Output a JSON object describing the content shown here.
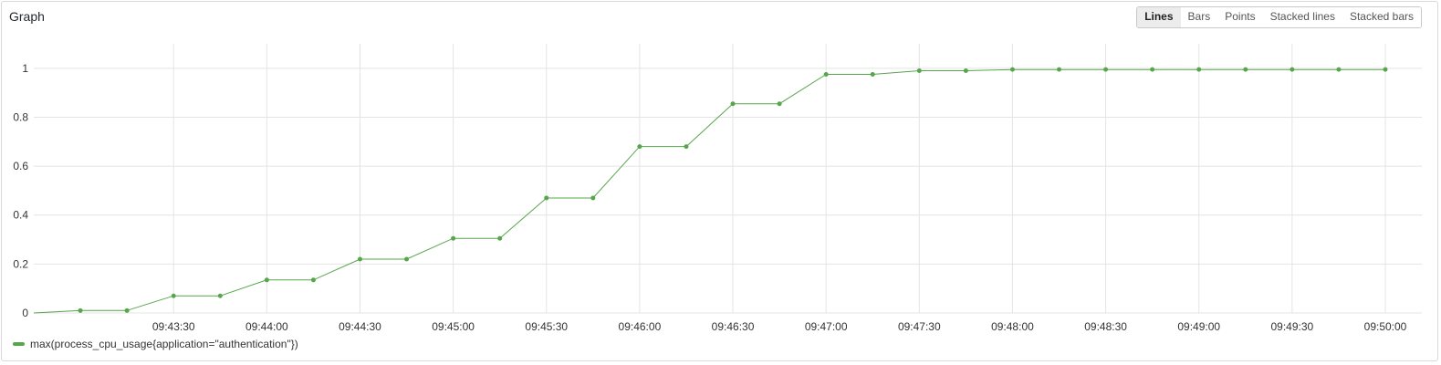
{
  "panel": {
    "title": "Graph"
  },
  "toolbar": {
    "options": [
      "Lines",
      "Bars",
      "Points",
      "Stacked lines",
      "Stacked bars"
    ],
    "selected": "Lines"
  },
  "colors": {
    "series": "#56a64b",
    "grid": "#e4e4e4",
    "axis_text": "#333333"
  },
  "legend": {
    "label": "max(process_cpu_usage{application=\"authentication\"})"
  },
  "chart_data": {
    "type": "line",
    "x": [
      "09:42:45",
      "09:43:00",
      "09:43:15",
      "09:43:30",
      "09:43:45",
      "09:44:00",
      "09:44:15",
      "09:44:30",
      "09:44:45",
      "09:45:00",
      "09:45:15",
      "09:45:30",
      "09:45:45",
      "09:46:00",
      "09:46:15",
      "09:46:30",
      "09:46:45",
      "09:47:00",
      "09:47:15",
      "09:47:30",
      "09:47:45",
      "09:48:00",
      "09:48:15",
      "09:48:30",
      "09:48:45",
      "09:49:00",
      "09:49:15",
      "09:49:30",
      "09:49:45",
      "09:50:00"
    ],
    "series": [
      {
        "name": "max(process_cpu_usage{application=\"authentication\"})",
        "values": [
          0.0,
          0.01,
          0.01,
          0.07,
          0.07,
          0.135,
          0.135,
          0.22,
          0.22,
          0.305,
          0.305,
          0.47,
          0.47,
          0.68,
          0.68,
          0.855,
          0.855,
          0.975,
          0.975,
          0.99,
          0.99,
          0.995,
          0.995,
          0.995,
          0.995,
          0.995,
          0.995,
          0.995,
          0.995,
          0.995
        ],
        "markers": [
          false,
          true,
          true,
          true,
          true,
          true,
          true,
          true,
          true,
          true,
          true,
          true,
          true,
          true,
          true,
          true,
          true,
          true,
          true,
          true,
          true,
          true,
          true,
          true,
          true,
          true,
          true,
          true,
          true,
          true
        ]
      }
    ],
    "x_ticks": [
      "09:43:30",
      "09:44:00",
      "09:44:30",
      "09:45:00",
      "09:45:30",
      "09:46:00",
      "09:46:30",
      "09:47:00",
      "09:47:30",
      "09:48:00",
      "09:48:30",
      "09:49:00",
      "09:49:30",
      "09:50:00"
    ],
    "y_ticks": [
      "0",
      "0.2",
      "0.4",
      "0.6",
      "0.8",
      "1"
    ],
    "ylim": [
      0,
      1.1
    ],
    "grid": true,
    "legend_position": "bottom-left"
  }
}
